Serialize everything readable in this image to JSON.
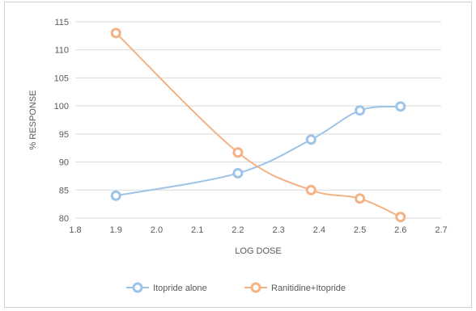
{
  "chart_data": {
    "type": "line",
    "title": "",
    "xlabel": "LOG DOSE",
    "ylabel": "% RESPONSE",
    "xlim": [
      1.8,
      2.7
    ],
    "ylim": [
      80,
      115
    ],
    "x_ticks": [
      "1.8",
      "1.9",
      "2.0",
      "2.1",
      "2.2",
      "2.3",
      "2.4",
      "2.5",
      "2.6",
      "2.7"
    ],
    "y_ticks": [
      "80",
      "85",
      "90",
      "95",
      "100",
      "105",
      "110",
      "115"
    ],
    "grid": true,
    "legend_position": "bottom",
    "series": [
      {
        "name": "Itopride alone",
        "color": "#9dc3e6",
        "x": [
          1.9,
          2.2,
          2.38,
          2.5,
          2.6
        ],
        "y": [
          84,
          88,
          94,
          99.2,
          99.9
        ]
      },
      {
        "name": "Ranitidine+Itopride",
        "color": "#f4b183",
        "x": [
          1.9,
          2.2,
          2.38,
          2.5,
          2.6
        ],
        "y": [
          113,
          91.7,
          85,
          83.5,
          80.2
        ]
      }
    ]
  }
}
